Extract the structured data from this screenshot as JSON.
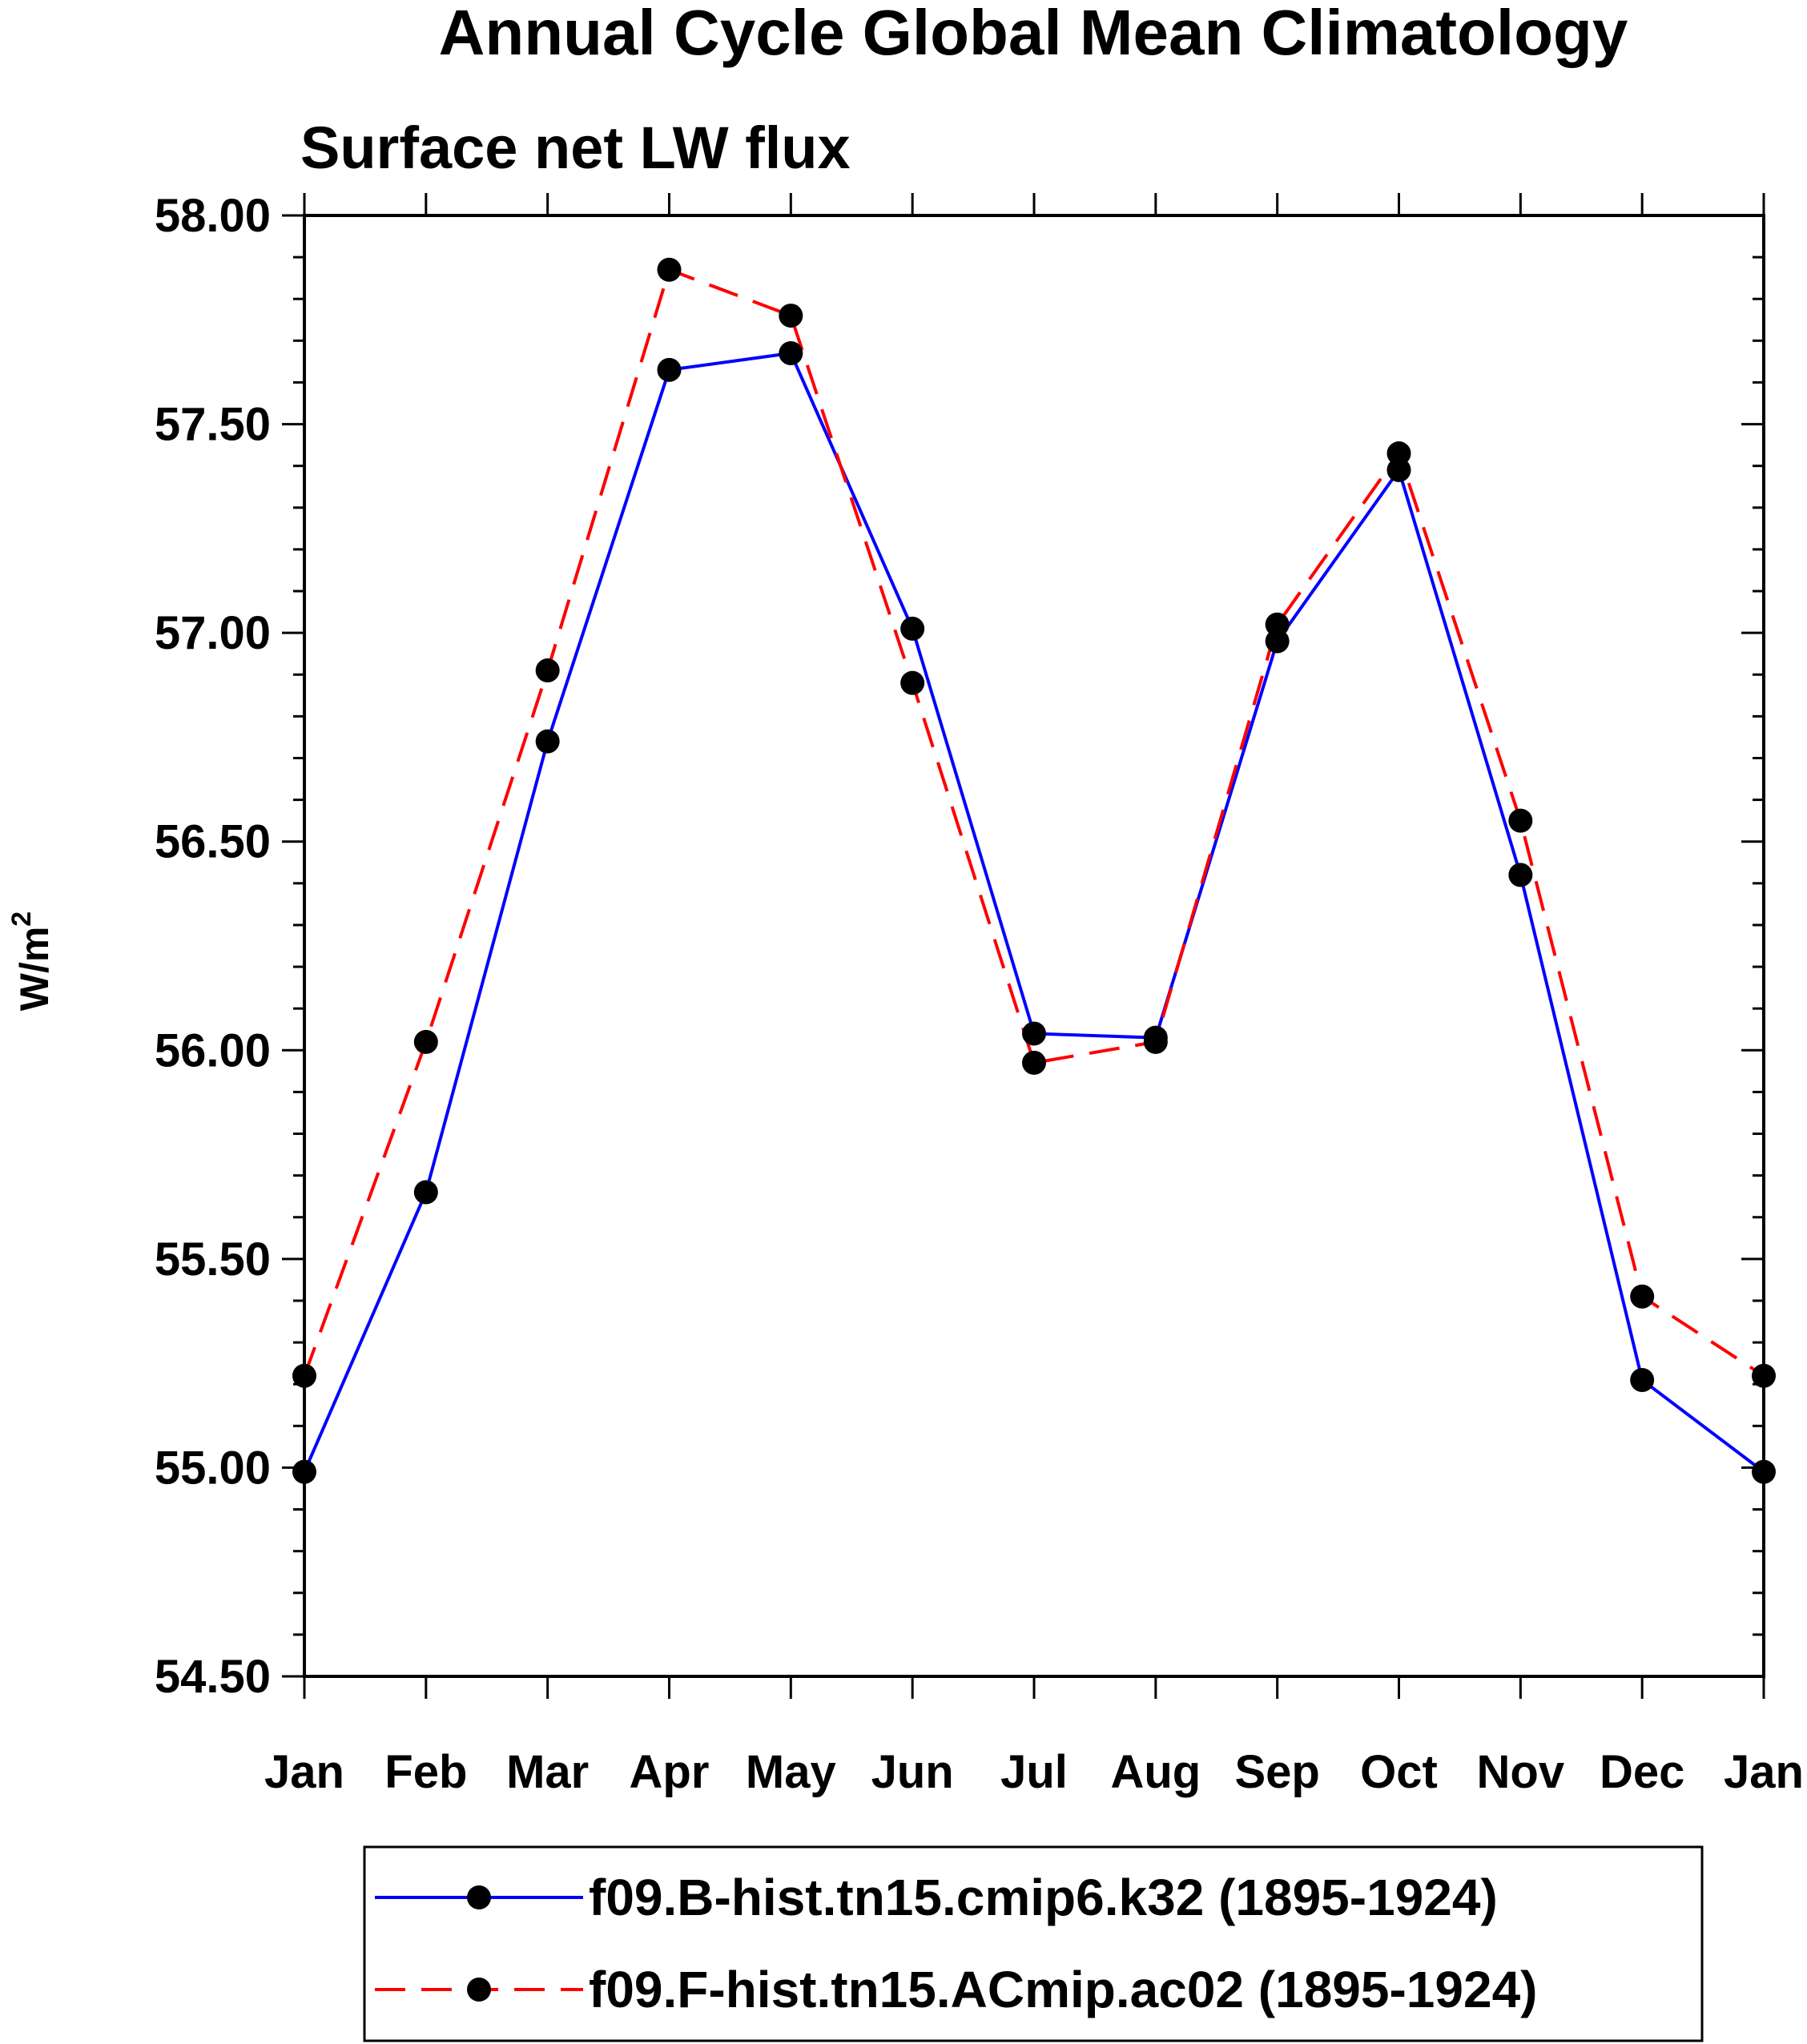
{
  "chart_data": {
    "type": "line",
    "title": "Annual Cycle Global Mean Climatology",
    "subtitle": "Surface net LW flux",
    "ylabel": "W/m",
    "ylabel_superscript": "2",
    "xlabel": "",
    "categories": [
      "Jan",
      "Feb",
      "Mar",
      "Apr",
      "May",
      "Jun",
      "Jul",
      "Aug",
      "Sep",
      "Oct",
      "Nov",
      "Dec",
      "Jan"
    ],
    "ylim": [
      54.5,
      58.0
    ],
    "yticks": [
      "58.00",
      "57.50",
      "57.00",
      "56.50",
      "56.00",
      "55.50",
      "55.00",
      "54.50"
    ],
    "series": [
      {
        "name": "f09.B-hist.tn15.cmip6.k32 (1895-1924)",
        "color": "#0000ff",
        "dash": "solid",
        "values": [
          54.99,
          55.66,
          56.74,
          57.63,
          57.67,
          57.01,
          56.04,
          56.03,
          56.98,
          57.39,
          56.42,
          55.21,
          54.99
        ]
      },
      {
        "name": "f09.F-hist.tn15.ACmip.ac02 (1895-1924)",
        "color": "#ff0000",
        "dash": "dashed",
        "values": [
          55.22,
          56.02,
          56.91,
          57.87,
          57.76,
          56.88,
          55.97,
          56.02,
          57.02,
          57.43,
          56.55,
          55.41,
          55.22
        ]
      }
    ],
    "legend_position": "bottom-center"
  }
}
